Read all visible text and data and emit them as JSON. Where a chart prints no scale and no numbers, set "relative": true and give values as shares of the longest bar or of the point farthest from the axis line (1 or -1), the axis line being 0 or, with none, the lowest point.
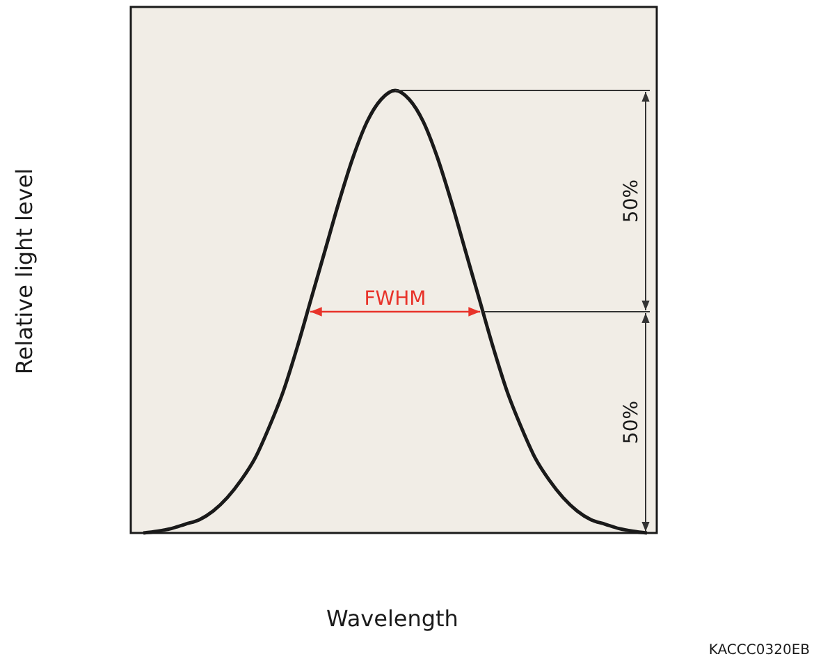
{
  "chart_data": {
    "type": "line",
    "relative": true,
    "xlabel": "Wavelength",
    "ylabel": "Relative light level",
    "color": "#1a1a1a",
    "categories": [
      null,
      null,
      null,
      null,
      null,
      null,
      null,
      null,
      null,
      null,
      null,
      null,
      null,
      null,
      null,
      null,
      null,
      null,
      null,
      null,
      null,
      null,
      null,
      null,
      null,
      null,
      null,
      null,
      null,
      null,
      null,
      null,
      null,
      null,
      null,
      null,
      null
    ],
    "values": [
      0,
      0.004,
      0.01,
      0.02,
      0.03,
      0.05,
      0.08,
      0.12,
      0.17,
      0.24,
      0.32,
      0.42,
      0.53,
      0.64,
      0.75,
      0.85,
      0.93,
      0.98,
      1,
      0.98,
      0.93,
      0.85,
      0.75,
      0.64,
      0.53,
      0.42,
      0.32,
      0.24,
      0.17,
      0.12,
      0.08,
      0.05,
      0.03,
      0.02,
      0.01,
      0.004,
      0
    ],
    "annotations": [
      "FWHM",
      "50%",
      "50%",
      "KACCC0320EB"
    ]
  }
}
